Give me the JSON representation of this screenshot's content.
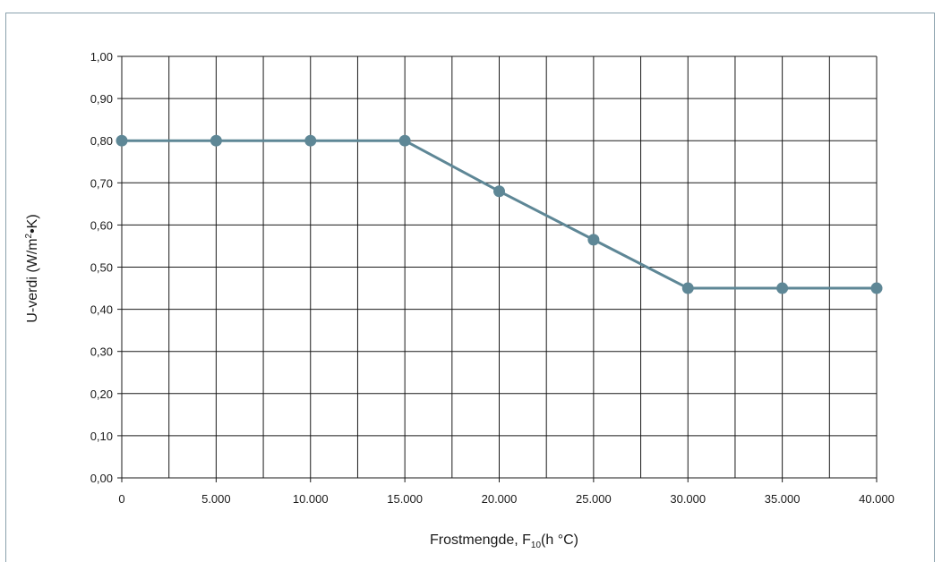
{
  "chart_data": {
    "type": "line",
    "title": "",
    "xlabel": "Frostmengde, F",
    "xlabel_sub": "10",
    "xlabel_unit": "(h °C)",
    "ylabel": "U-verdi (W/m",
    "ylabel_sup": "2",
    "ylabel_unit": "•K)",
    "xlim": [
      0,
      40000
    ],
    "ylim": [
      0.0,
      1.0
    ],
    "x_ticks": [
      0,
      5000,
      10000,
      15000,
      20000,
      25000,
      30000,
      35000,
      40000
    ],
    "x_tick_labels": [
      "0",
      "5.000",
      "10.000",
      "15.000",
      "20.000",
      "25.000",
      "30.000",
      "35.000",
      "40.000"
    ],
    "y_ticks": [
      0,
      0.1,
      0.2,
      0.3,
      0.4,
      0.5,
      0.6,
      0.7,
      0.8,
      0.9,
      1.0
    ],
    "y_tick_labels": [
      "0,00",
      "0,10",
      "0,20",
      "0,30",
      "0,40",
      "0,50",
      "0,60",
      "0,70",
      "0,80",
      "0,90",
      "1,00"
    ],
    "grid": true,
    "series": [
      {
        "x": [
          0,
          5000,
          10000,
          15000,
          20000,
          25000,
          30000,
          35000,
          40000
        ],
        "y": [
          0.8,
          0.8,
          0.8,
          0.8,
          0.68,
          0.565,
          0.45,
          0.45,
          0.45
        ],
        "color": "#5e8796"
      }
    ]
  }
}
